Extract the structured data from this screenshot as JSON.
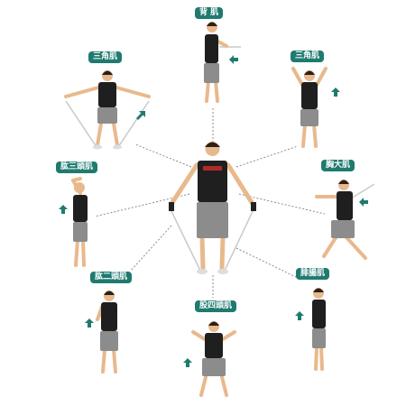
{
  "colors": {
    "label_background": "#1f7a6f",
    "arrow": "#1f7a6f",
    "connector": "#8c8c8c",
    "tank_top": "#1f1f1f",
    "shorts": "#8c8c8c",
    "skin": "#e8b98c",
    "hair": "#2b2118",
    "band": "#c9c9c9"
  },
  "exercises": [
    {
      "id": "back",
      "label": "背 肌",
      "arrow": "left-arrow-icon"
    },
    {
      "id": "deltoid-left",
      "label": "三角肌",
      "arrow": "up-right-arrow-icon"
    },
    {
      "id": "deltoid-right",
      "label": "三角肌",
      "arrow": "up-arrow-icon"
    },
    {
      "id": "triceps",
      "label": "肱三頭肌",
      "arrow": "up-arrow-icon"
    },
    {
      "id": "chest",
      "label": "胸大肌",
      "arrow": "left-arrow-icon"
    },
    {
      "id": "biceps",
      "label": "肱二頭肌",
      "arrow": "up-arrow-icon"
    },
    {
      "id": "quadriceps",
      "label": "股四頭肌",
      "arrow": "up-arrow-icon"
    },
    {
      "id": "calf",
      "label": "腓腸肌",
      "arrow": "up-arrow-icon"
    }
  ]
}
